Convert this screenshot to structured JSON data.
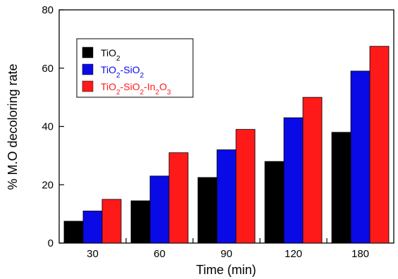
{
  "chart_data": {
    "type": "bar",
    "xlabel": "Time (min)",
    "ylabel": "% M.O decoloring rate",
    "categories": [
      "30",
      "60",
      "90",
      "120",
      "180"
    ],
    "ylim": [
      0,
      80
    ],
    "yticks": [
      0,
      20,
      40,
      60,
      80
    ],
    "grid": false,
    "legend_position": "top-left",
    "series": [
      {
        "name": "TiO2",
        "color": "#000000",
        "values": [
          7.5,
          14.5,
          22.5,
          28,
          38
        ],
        "legend": {
          "base": "TiO",
          "sub": "2",
          "tail": "",
          "sub2": "",
          "tail2": "",
          "sub3": ""
        }
      },
      {
        "name": "TiO2-SiO2",
        "color": "#0a0ae6",
        "values": [
          11,
          23,
          32,
          43,
          59
        ],
        "legend": {
          "base": "TiO",
          "sub": "2",
          "tail": "-SiO",
          "sub2": "2",
          "tail2": "",
          "sub3": ""
        }
      },
      {
        "name": "TiO2-SiO2-In2O3",
        "color": "#ff1a1a",
        "values": [
          15,
          31,
          39,
          50,
          67.5
        ],
        "legend": {
          "base": "TiO",
          "sub": "2",
          "tail": "-SiO",
          "sub2": "2",
          "tail2": "-In",
          "sub3": "2",
          "tail3": "O",
          "sub4": "3"
        }
      }
    ]
  }
}
